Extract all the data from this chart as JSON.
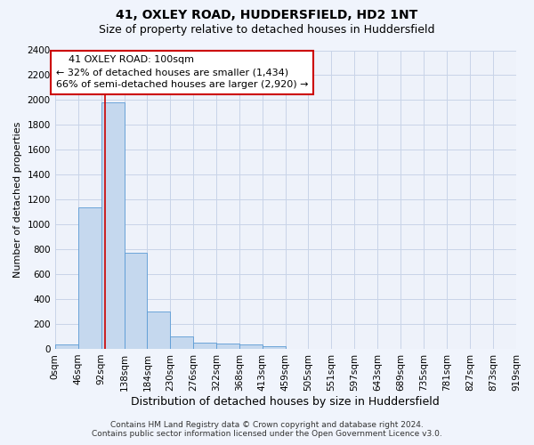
{
  "title": "41, OXLEY ROAD, HUDDERSFIELD, HD2 1NT",
  "subtitle": "Size of property relative to detached houses in Huddersfield",
  "xlabel": "Distribution of detached houses by size in Huddersfield",
  "ylabel": "Number of detached properties",
  "footer_line1": "Contains HM Land Registry data © Crown copyright and database right 2024.",
  "footer_line2": "Contains public sector information licensed under the Open Government Licence v3.0.",
  "annotation_line1": "    41 OXLEY ROAD: 100sqm",
  "annotation_line2": "← 32% of detached houses are smaller (1,434)",
  "annotation_line3": "66% of semi-detached houses are larger (2,920) →",
  "property_sqm": 100,
  "bin_width": 46,
  "bin_edges": [
    0,
    46,
    92,
    138,
    184,
    230,
    276,
    322,
    368,
    413,
    459,
    505,
    551,
    597,
    643,
    689,
    735,
    781,
    827,
    873,
    919
  ],
  "bar_heights": [
    35,
    1135,
    1980,
    775,
    300,
    100,
    47,
    40,
    35,
    20,
    0,
    0,
    0,
    0,
    0,
    0,
    0,
    0,
    0,
    0
  ],
  "bar_color": "#c5d8ee",
  "bar_edge_color": "#5b9bd5",
  "vline_color": "#cc0000",
  "vline_x": 100,
  "ylim_max": 2400,
  "yticks": [
    0,
    200,
    400,
    600,
    800,
    1000,
    1200,
    1400,
    1600,
    1800,
    2000,
    2200,
    2400
  ],
  "xtick_labels": [
    "0sqm",
    "46sqm",
    "92sqm",
    "138sqm",
    "184sqm",
    "230sqm",
    "276sqm",
    "322sqm",
    "368sqm",
    "413sqm",
    "459sqm",
    "505sqm",
    "551sqm",
    "597sqm",
    "643sqm",
    "689sqm",
    "735sqm",
    "781sqm",
    "827sqm",
    "873sqm",
    "919sqm"
  ],
  "grid_color": "#c8d4e8",
  "bg_color": "#f0f4fc",
  "plot_bg_color": "#eef2fa",
  "annotation_box_facecolor": "#ffffff",
  "annotation_box_edgecolor": "#cc0000",
  "title_fontsize": 10,
  "subtitle_fontsize": 9,
  "xlabel_fontsize": 9,
  "ylabel_fontsize": 8,
  "tick_fontsize": 7.5,
  "annotation_fontsize": 8,
  "footer_fontsize": 6.5
}
